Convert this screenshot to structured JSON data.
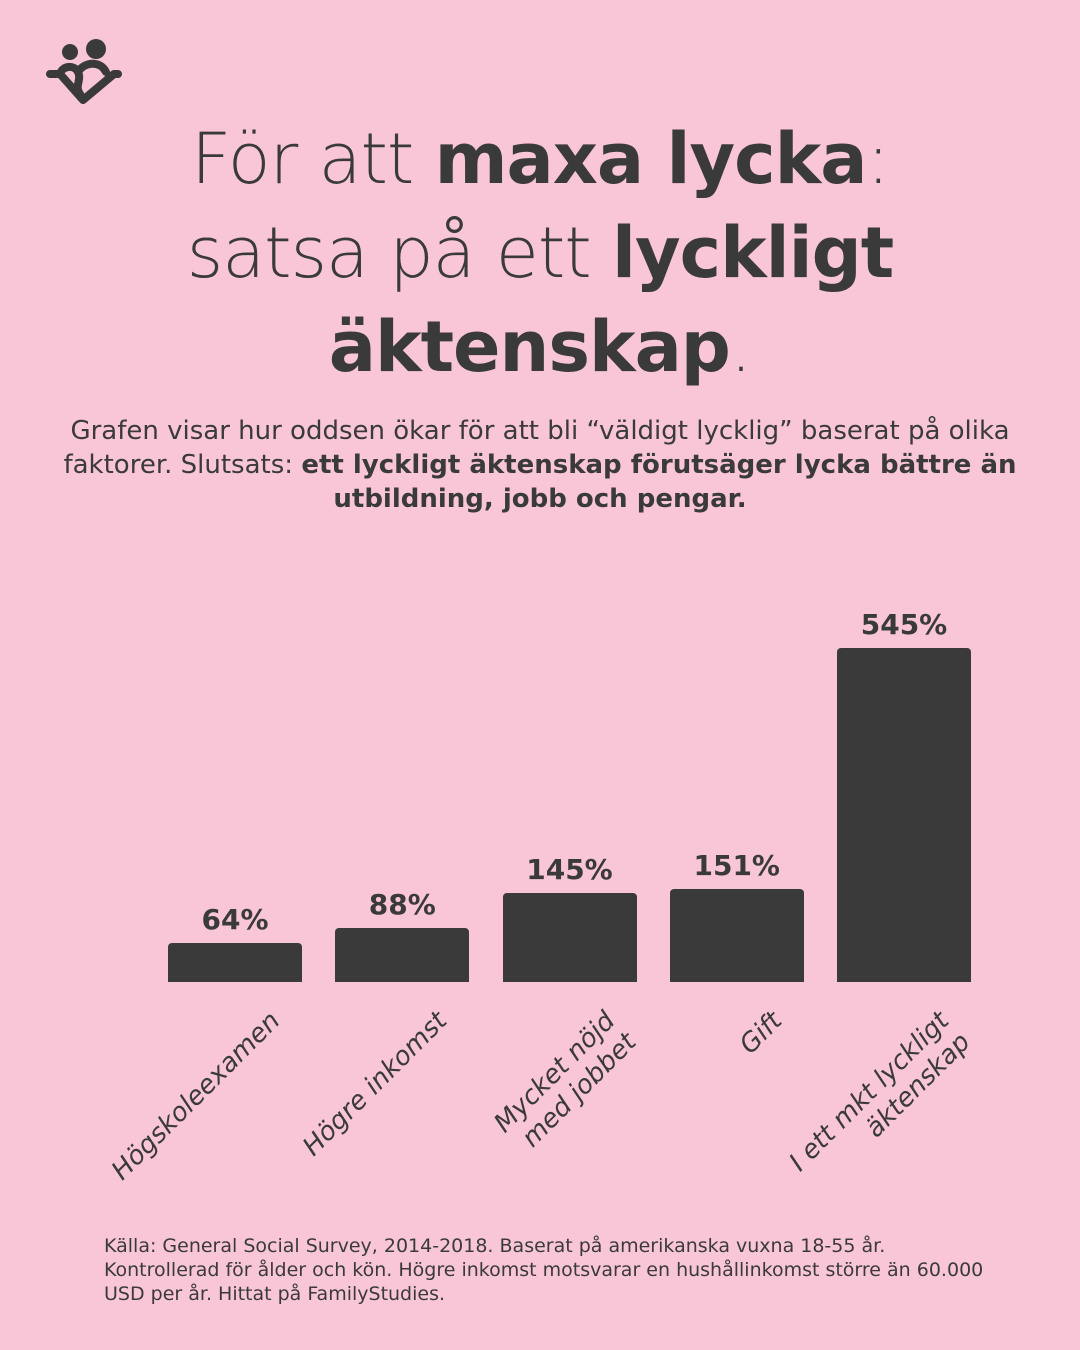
{
  "logo": {
    "icon": "heart-couple-logo",
    "color": "#3b3a3a"
  },
  "title": {
    "l1a": "För att ",
    "l1b": "maxa lycka",
    ":": ":",
    "l2a": "satsa på ett ",
    "l2b": "lyckligt",
    "l3b": "äktenskap",
    "l3c": "."
  },
  "subtitle": {
    "normal": "Grafen visar hur oddsen ökar för att bli “väldigt lycklig” baserat på olika faktorer. Slutsats: ",
    "bold": "ett lyckligt äktenskap förutsäger lycka bättre än utbildning, jobb och pengar."
  },
  "chart_data": {
    "type": "bar",
    "categories": [
      [
        "Högskoleexamen"
      ],
      [
        "Högre inkomst"
      ],
      [
        "Mycket nöjd",
        "med jobbet"
      ],
      [
        "Gift"
      ],
      [
        "I ett mkt lyckligt",
        "äktenskap"
      ]
    ],
    "values": [
      64,
      88,
      145,
      151,
      545
    ],
    "labels": [
      "64%",
      "88%",
      "145%",
      "151%",
      "545%"
    ],
    "bar_color": "#3b3a3a",
    "ylim": [
      0,
      545
    ],
    "grid": false
  },
  "footer": "Källa: General Social Survey, 2014-2018. Baserat på amerikanska vuxna 18-55 år. Kontrollerad för ålder och kön. Högre inkomst motsvarar en hushållinkomst större än 60.000 USD per år. Hittat på FamilyStudies."
}
